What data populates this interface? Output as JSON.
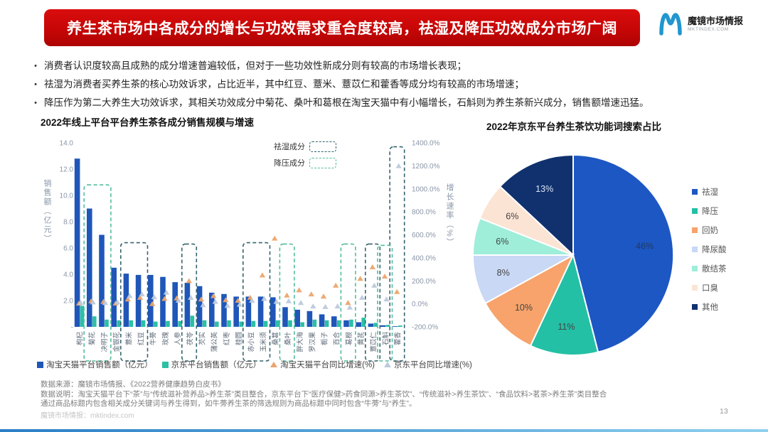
{
  "header": {
    "title": "养生茶市场中各成分的增长与功效需求重合度较高，祛湿及降压功效成分市场广阔",
    "logo": {
      "name": "魔镜市场情报",
      "site": "MKTINDEX.COM"
    }
  },
  "bullets": [
    "消费者认识度较高且成熟的成分增速普遍较低，但对于一些功效性新成分则有较高的市场增长表现；",
    "祛湿为消费者买养生茶的核心功效诉求，占比近半，其中红豆、薏米、薏苡仁和藿香等成分均有较高的市场增速；",
    "降压作为第二大养生大功效诉求，其相关功效成分中菊花、桑叶和葛根在淘宝天猫中有小幅增长，石斛则为养生茶新兴成分，销售额增速迅猛。"
  ],
  "chart_data": [
    {
      "type": "bar",
      "title": "2022年线上平台平台养生茶各成分销售规模与增速",
      "categories": [
        "枸杞",
        "菊花",
        "决明子",
        "金银花",
        "薏米",
        "红豆",
        "牛蒡",
        "玫瑰",
        "人参",
        "茯苓",
        "芡实",
        "蒲公英",
        "红枣",
        "桂圆",
        "赤小豆",
        "玉米须",
        "桑葚",
        "桑叶",
        "胖大海",
        "罗汉果",
        "栀子",
        "百合",
        "葛根",
        "黄芪",
        "薏苡仁",
        "石斛",
        "藿香"
      ],
      "series": [
        {
          "name": "淘宝天猫平台销售额（亿元）",
          "type": "bar",
          "color": "#1f56b8",
          "values": [
            12.8,
            9.0,
            7.0,
            4.5,
            4.05,
            3.95,
            3.95,
            3.8,
            3.4,
            3.35,
            3.1,
            2.6,
            2.5,
            2.3,
            2.3,
            2.3,
            2.25,
            1.5,
            1.3,
            1.2,
            0.95,
            0.8,
            0.5,
            0.35,
            0.25,
            0.12,
            0.05
          ]
        },
        {
          "name": "京东平台销售额（亿元）",
          "type": "bar",
          "color": "#2cbfa5",
          "values": [
            1.6,
            0.8,
            0.55,
            0.5,
            0.5,
            0.5,
            0.4,
            0.45,
            0.45,
            0.85,
            0.5,
            0.4,
            0.5,
            0.4,
            0.45,
            0.45,
            0.5,
            0.5,
            0.35,
            0.55,
            0.5,
            0.5,
            0.55,
            0.7,
            0.3,
            0.15,
            0.1
          ]
        },
        {
          "name": "淘宝天猫平台同比增速(%)",
          "type": "triangle",
          "color": "#eba56e",
          "values": [
            5,
            25,
            20,
            5,
            40,
            55,
            0,
            45,
            50,
            200,
            40,
            70,
            35,
            30,
            55,
            250,
            570,
            75,
            120,
            85,
            65,
            160,
            10,
            220,
            320,
            240,
            105
          ]
        },
        {
          "name": "京东平台同比增速(%)",
          "type": "triangle",
          "color": "#bdc9dc",
          "values": [
            10,
            15,
            10,
            15,
            70,
            85,
            60,
            100,
            30,
            55,
            -10,
            20,
            -15,
            -5,
            30,
            45,
            20,
            25,
            10,
            -20,
            -25,
            -20,
            -30,
            55,
            160,
            40,
            1200
          ]
        }
      ],
      "ylabel_left": "销售额（亿元）",
      "ylabel_right": "增长速率（%）",
      "yticks_left": [
        "14.0",
        "12.0",
        "10.0",
        "8.0",
        "6.0",
        "4.0",
        "2.0",
        "-"
      ],
      "yticks_right": [
        "1400.0%",
        "1200.0%",
        "1000.0%",
        "800.0%",
        "600.0%",
        "400.0%",
        "200.0%",
        "0.0%",
        "-200.0%"
      ],
      "ylim_left": [
        0,
        14
      ],
      "ylim_right": [
        -200,
        1400
      ],
      "grid": false,
      "annotations": {
        "qushi_label": "祛湿成分",
        "jiangya_label": "降压成分",
        "qushi_color": "#34646e",
        "jiangya_color": "#52bd9d",
        "qushi_boxes": [
          [
            4,
            5,
            6.4
          ],
          [
            9,
            9,
            6.3
          ],
          [
            14,
            15,
            6.4
          ],
          [
            24,
            24,
            6.3
          ],
          [
            26,
            26,
            13.7
          ]
        ],
        "jiangya_boxes": [
          [
            1,
            2,
            10.8
          ],
          [
            17,
            17,
            6.3
          ],
          [
            22,
            22,
            6.3
          ],
          [
            25,
            25,
            6.2
          ]
        ]
      }
    },
    {
      "type": "pie",
      "title": "2022年京东平台养生茶饮功能词搜索占比",
      "labels": [
        "祛湿",
        "降压",
        "回奶",
        "降尿酸",
        "散结茶",
        "口臭",
        "其他"
      ],
      "values": [
        46,
        11,
        10,
        8,
        6,
        6,
        13
      ],
      "value_labels": [
        "46%",
        "11%",
        "10%",
        "8%",
        "6%",
        "6%",
        "13%"
      ],
      "colors": [
        "#1d57c3",
        "#23c0a5",
        "#f7a36b",
        "#c8d8f5",
        "#9eeeda",
        "#fbe4d4",
        "#10316e"
      ],
      "label_colors": [
        "#1e3a5f",
        "#444444",
        "#444444",
        "#444444",
        "#444444",
        "#444444",
        "#dce6f5"
      ],
      "legend_position": "right"
    }
  ],
  "source": {
    "line1": "数据来源：魔镜市场情报、《2022营养健康趋势白皮书》",
    "line2": "数据说明：淘宝天猫平台下“茶”与“传统滋补营养品>养生茶”类目整合，京东平台下“医疗保健>药食同源>养生茶饮”、“传统滋补>养生茶饮”、“食品饮料>茗茶>养生茶”类目整合",
    "line3": "通过商品标题内包含相关成分关键词与养生得到，如牛蒡养生茶的筛选规则为商品标题中同时包含“牛蒡”与“养生”。"
  },
  "footer": {
    "watermark": "魔镜市场情报：mktindex.com",
    "page": "13"
  }
}
